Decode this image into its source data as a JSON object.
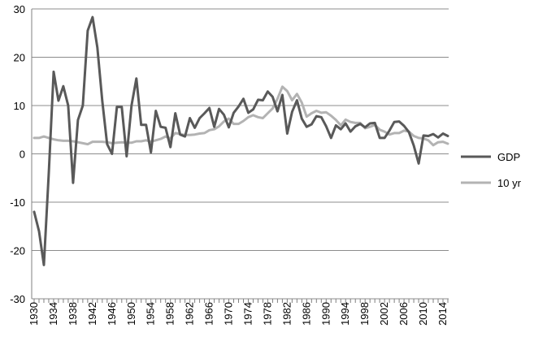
{
  "chart_data": {
    "type": "line",
    "title": "",
    "xlabel": "",
    "ylabel": "",
    "ylim": [
      -30,
      30
    ],
    "yticks": [
      -30,
      -20,
      -10,
      0,
      10,
      20,
      30
    ],
    "xlim": [
      1930,
      2015
    ],
    "xticks": [
      1930,
      1934,
      1938,
      1942,
      1946,
      1950,
      1954,
      1958,
      1962,
      1966,
      1970,
      1974,
      1978,
      1982,
      1986,
      1990,
      1994,
      1998,
      2002,
      2006,
      2010,
      2014
    ],
    "grid": "horizontal",
    "legend": "right",
    "x": [
      1930,
      1931,
      1932,
      1933,
      1934,
      1935,
      1936,
      1937,
      1938,
      1939,
      1940,
      1941,
      1942,
      1943,
      1944,
      1945,
      1946,
      1947,
      1948,
      1949,
      1950,
      1951,
      1952,
      1953,
      1954,
      1955,
      1956,
      1957,
      1958,
      1959,
      1960,
      1961,
      1962,
      1963,
      1964,
      1965,
      1966,
      1967,
      1968,
      1969,
      1970,
      1971,
      1972,
      1973,
      1974,
      1975,
      1976,
      1977,
      1978,
      1979,
      1980,
      1981,
      1982,
      1983,
      1984,
      1985,
      1986,
      1987,
      1988,
      1989,
      1990,
      1991,
      1992,
      1993,
      1994,
      1995,
      1996,
      1997,
      1998,
      1999,
      2000,
      2001,
      2002,
      2003,
      2004,
      2005,
      2006,
      2007,
      2008,
      2009,
      2010,
      2011,
      2012,
      2013,
      2014,
      2015
    ],
    "series": [
      {
        "name": "GDP",
        "color": "#595959",
        "values": [
          -12,
          -16,
          -23,
          -4,
          17,
          11,
          14,
          10,
          -6,
          7,
          10,
          25.5,
          28.3,
          22,
          11,
          2,
          0,
          9.7,
          9.7,
          -0.5,
          10,
          15.6,
          6,
          6,
          0.3,
          8.9,
          5.6,
          5.4,
          1.4,
          8.4,
          4,
          3.6,
          7.4,
          5.4,
          7.4,
          8.4,
          9.5,
          5.6,
          9.3,
          8.1,
          5.5,
          8.5,
          9.8,
          11.4,
          8.5,
          9.2,
          11.2,
          11.1,
          12.9,
          11.8,
          8.8,
          12.2,
          4.2,
          8.7,
          11.1,
          7.3,
          5.6,
          6.1,
          7.8,
          7.6,
          5.7,
          3.3,
          5.9,
          5.1,
          6.3,
          4.6,
          5.7,
          6.2,
          5.5,
          6.3,
          6.4,
          3.3,
          3.3,
          4.8,
          6.6,
          6.7,
          5.8,
          4.5,
          1.7,
          -2,
          3.8,
          3.7,
          4.1,
          3.4,
          4.2,
          3.7
        ]
      },
      {
        "name": "10 yr",
        "color": "#b3b3b3",
        "values": [
          3.3,
          3.3,
          3.6,
          3.3,
          3,
          2.8,
          2.7,
          2.7,
          2.6,
          2.4,
          2.2,
          2,
          2.5,
          2.5,
          2.5,
          2.4,
          2.2,
          2.3,
          2.4,
          2.3,
          2.3,
          2.6,
          2.6,
          2.8,
          2.5,
          2.8,
          3.1,
          3.6,
          3.2,
          4.3,
          4.1,
          3.9,
          3.9,
          4,
          4.2,
          4.3,
          4.9,
          5.1,
          5.7,
          6.7,
          7.3,
          6.2,
          6.2,
          6.8,
          7.6,
          8,
          7.6,
          7.4,
          8.4,
          9.4,
          11.4,
          13.9,
          13,
          11.1,
          12.4,
          10.6,
          7.7,
          8.4,
          8.9,
          8.5,
          8.6,
          7.9,
          7,
          5.9,
          7.1,
          6.6,
          6.4,
          6.4,
          5.3,
          5.6,
          6,
          5,
          4.6,
          4,
          4.3,
          4.3,
          4.8,
          4.6,
          3.7,
          3.3,
          3.2,
          2.8,
          1.8,
          2.4,
          2.5,
          2.1
        ]
      }
    ]
  },
  "colors": {
    "gridline": "#8c8c8c",
    "axis": "#808080",
    "text": "#000000"
  }
}
